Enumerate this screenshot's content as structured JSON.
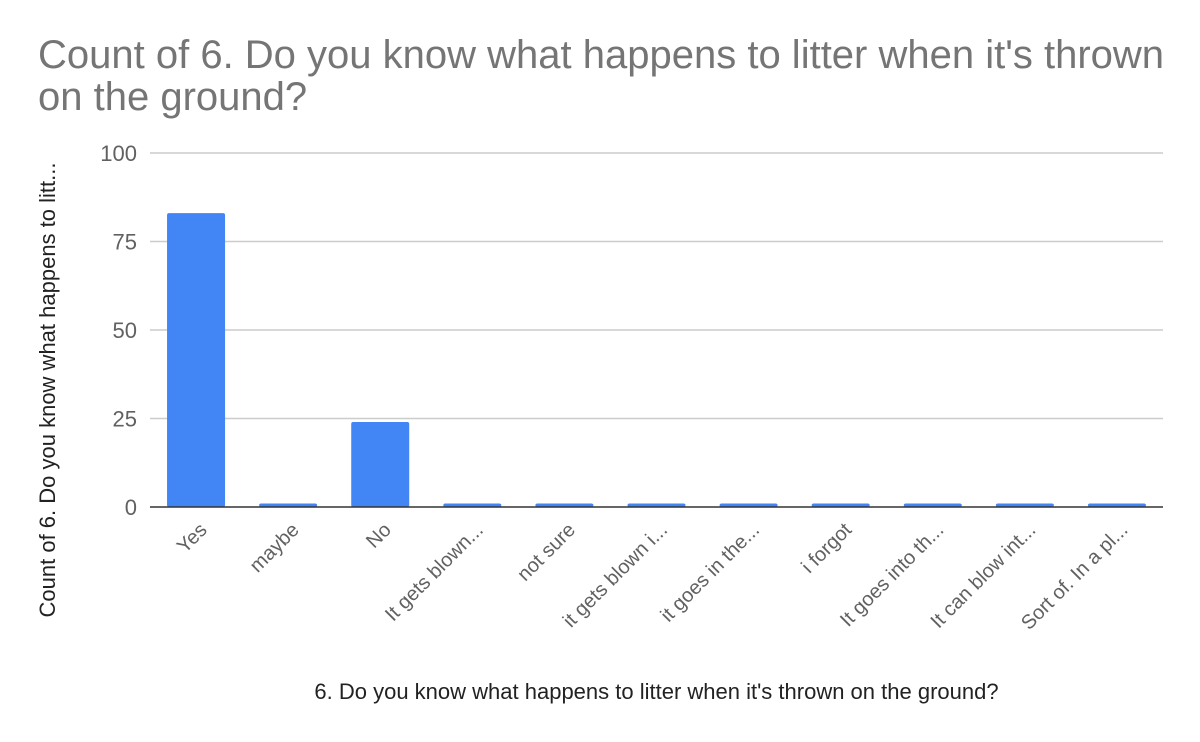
{
  "chart_data": {
    "type": "bar",
    "title": "Count of 6. Do you know what happens to litter when it's thrown on the ground?",
    "xlabel": "6. Do you know what happens to litter when it's thrown on the ground?",
    "ylabel": "Count of 6. Do you know what happens to litt...",
    "categories": [
      "Yes",
      "maybe",
      "No",
      "It gets blown...",
      "not sure",
      "it gets blown i...",
      "it goes in the...",
      "i forgot",
      "It goes into th...",
      "It can blow int...",
      "Sort of. In a pl..."
    ],
    "values": [
      83,
      1,
      24,
      1,
      1,
      1,
      1,
      1,
      1,
      1,
      1
    ],
    "ylim": [
      0,
      100
    ],
    "yticks": [
      0,
      25,
      50,
      75,
      100
    ],
    "grid": true,
    "legend": "none",
    "colors": {
      "bar": "#4285f4",
      "grid": "#cccccc",
      "axis": "#333333"
    }
  }
}
